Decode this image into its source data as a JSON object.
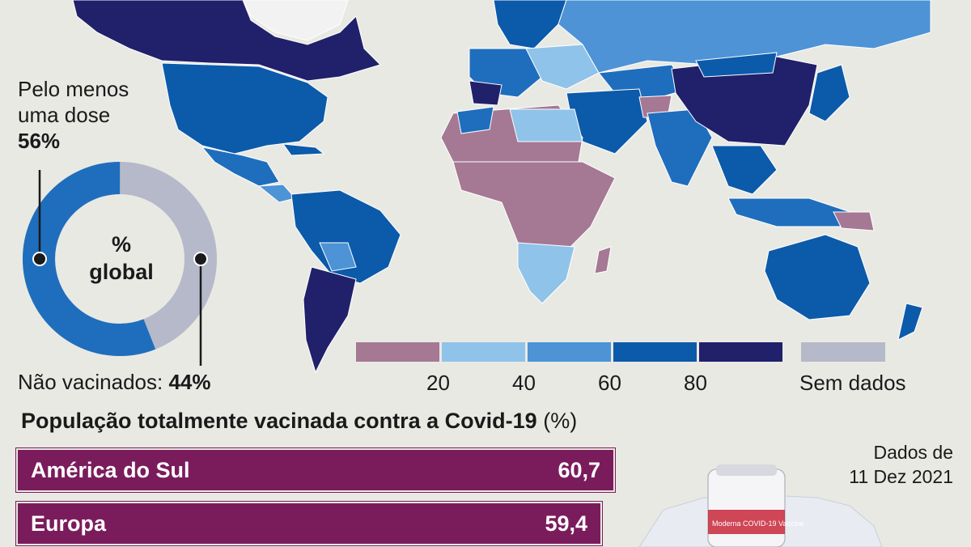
{
  "donut": {
    "dose_label_line1": "Pelo menos",
    "dose_label_line2": "uma dose",
    "dose_value": "56%",
    "center_line1": "%",
    "center_line2": "global",
    "unvaccinated_label": "Não vacinados:",
    "unvaccinated_value": "44%",
    "dose_fraction": 0.56,
    "colors": {
      "dose": "#1f6ebd",
      "unvaccinated": "#b5b9c9"
    }
  },
  "legend": {
    "ticks": [
      "20",
      "40",
      "60",
      "80"
    ],
    "no_data_label": "Sem dados",
    "colors": [
      "#a57894",
      "#8fc3e9",
      "#4d93d6",
      "#0c5aaa",
      "#21206a"
    ],
    "no_data_color": "#b5b9c9"
  },
  "title": {
    "main": "População totalmente vacinada contra a Covid-19",
    "unit": "(%)"
  },
  "bars": [
    {
      "region": "América do Sul",
      "value": "60,7",
      "value_num": 60.7
    },
    {
      "region": "Europa",
      "value": "59,4",
      "value_num": 59.4
    }
  ],
  "data_date": {
    "line1": "Dados de",
    "line2": "11 Dez 2021"
  },
  "vial_label": "Moderna COVID-19 Vaccine",
  "colors": {
    "ocean": "#e9e9e4",
    "bar": "#7a1c5c"
  }
}
